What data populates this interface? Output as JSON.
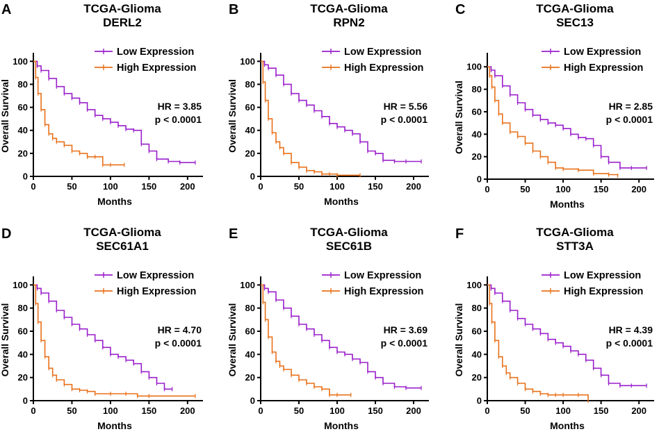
{
  "colors": {
    "low": "#9A1FCB",
    "high": "#E8711A",
    "axis": "#000000"
  },
  "chart_data": [
    {
      "letter": "A",
      "type": "line",
      "title": "TCGA-Glioma",
      "subtitle": "DERL2",
      "xlabel": "Months",
      "ylabel": "Overall Survival",
      "xlim": [
        0,
        220
      ],
      "ylim": [
        0,
        105
      ],
      "xticks": [
        "0",
        "50",
        "100",
        "150",
        "200"
      ],
      "yticks": [
        "0",
        "20",
        "40",
        "60",
        "80",
        "100"
      ],
      "hr_text": "HR = 3.85",
      "p_text": "p < 0.0001",
      "series": [
        {
          "name": "Low Expression",
          "x": [
            0,
            5,
            10,
            20,
            30,
            40,
            50,
            60,
            70,
            80,
            90,
            100,
            110,
            120,
            130,
            140,
            150,
            160,
            175,
            190,
            210
          ],
          "y": [
            100,
            96,
            92,
            85,
            78,
            72,
            68,
            64,
            58,
            53,
            50,
            47,
            44,
            41,
            40,
            28,
            22,
            15,
            13,
            12,
            12
          ]
        },
        {
          "name": "High Expression",
          "x": [
            0,
            3,
            6,
            10,
            15,
            20,
            25,
            30,
            40,
            50,
            60,
            70,
            80,
            90,
            100,
            118
          ],
          "y": [
            100,
            86,
            72,
            58,
            45,
            37,
            33,
            30,
            27,
            22,
            20,
            17,
            17,
            10,
            10,
            10
          ]
        }
      ]
    },
    {
      "letter": "B",
      "type": "line",
      "title": "TCGA-Glioma",
      "subtitle": "RPN2",
      "xlabel": "Months",
      "ylabel": "Overall Survival",
      "xlim": [
        0,
        220
      ],
      "ylim": [
        0,
        105
      ],
      "xticks": [
        "0",
        "50",
        "100",
        "150",
        "200"
      ],
      "yticks": [
        "0",
        "20",
        "40",
        "60",
        "80",
        "100"
      ],
      "hr_text": "HR = 5.56",
      "p_text": "p < 0.0001",
      "series": [
        {
          "name": "Low Expression",
          "x": [
            0,
            5,
            10,
            20,
            30,
            40,
            50,
            60,
            70,
            80,
            90,
            100,
            110,
            120,
            130,
            140,
            150,
            160,
            175,
            190,
            210
          ],
          "y": [
            100,
            97,
            94,
            88,
            80,
            72,
            66,
            62,
            57,
            52,
            46,
            43,
            40,
            37,
            30,
            22,
            20,
            14,
            13,
            13,
            13
          ]
        },
        {
          "name": "High Expression",
          "x": [
            0,
            3,
            6,
            10,
            15,
            20,
            25,
            30,
            40,
            50,
            60,
            70,
            80,
            90,
            100,
            130
          ],
          "y": [
            100,
            82,
            66,
            50,
            38,
            30,
            25,
            20,
            12,
            8,
            5,
            4,
            2,
            2,
            1,
            1
          ]
        }
      ]
    },
    {
      "letter": "C",
      "type": "line",
      "title": "TCGA-Glioma",
      "subtitle": "SEC13",
      "xlabel": "Months",
      "ylabel": "Overall Survival",
      "xlim": [
        0,
        220
      ],
      "ylim": [
        0,
        110
      ],
      "xticks": [
        "0",
        "50",
        "100",
        "150",
        "200"
      ],
      "yticks": [
        "0",
        "20",
        "40",
        "60",
        "80",
        "100"
      ],
      "hr_text": "HR = 2.85",
      "p_text": "p < 0.0001",
      "series": [
        {
          "name": "Low Expression",
          "x": [
            0,
            5,
            10,
            20,
            30,
            40,
            50,
            60,
            70,
            80,
            90,
            100,
            110,
            120,
            130,
            140,
            150,
            160,
            175,
            190,
            210
          ],
          "y": [
            100,
            97,
            92,
            83,
            75,
            68,
            62,
            57,
            53,
            50,
            48,
            45,
            40,
            37,
            36,
            30,
            20,
            15,
            10,
            10,
            10
          ]
        },
        {
          "name": "High Expression",
          "x": [
            0,
            3,
            6,
            10,
            15,
            20,
            30,
            40,
            50,
            60,
            70,
            80,
            90,
            100,
            120,
            140,
            160,
            172
          ],
          "y": [
            100,
            92,
            82,
            70,
            58,
            50,
            42,
            38,
            32,
            25,
            20,
            15,
            10,
            9,
            8,
            5,
            4,
            3
          ]
        }
      ]
    },
    {
      "letter": "D",
      "type": "line",
      "title": "TCGA-Glioma",
      "subtitle": "SEC61A1",
      "xlabel": "Months",
      "ylabel": "Overall Survival",
      "xlim": [
        0,
        220
      ],
      "ylim": [
        0,
        105
      ],
      "xticks": [
        "0",
        "50",
        "100",
        "150",
        "200"
      ],
      "yticks": [
        "0",
        "20",
        "40",
        "60",
        "80",
        "100"
      ],
      "hr_text": "HR = 4.70",
      "p_text": "p < 0.0001",
      "series": [
        {
          "name": "Low Expression",
          "x": [
            0,
            5,
            10,
            20,
            30,
            40,
            50,
            60,
            70,
            80,
            90,
            100,
            110,
            120,
            130,
            140,
            150,
            160,
            170,
            180
          ],
          "y": [
            100,
            97,
            93,
            86,
            78,
            72,
            66,
            62,
            57,
            52,
            46,
            40,
            38,
            35,
            32,
            25,
            20,
            15,
            10,
            10
          ]
        },
        {
          "name": "High Expression",
          "x": [
            0,
            3,
            6,
            10,
            15,
            20,
            25,
            30,
            40,
            50,
            60,
            70,
            80,
            100,
            120,
            135,
            150,
            210
          ],
          "y": [
            100,
            84,
            68,
            52,
            38,
            28,
            22,
            18,
            14,
            10,
            9,
            8,
            6,
            6,
            6,
            4,
            4,
            4
          ]
        }
      ]
    },
    {
      "letter": "E",
      "type": "line",
      "title": "TCGA-Glioma",
      "subtitle": "SEC61B",
      "xlabel": "Months",
      "ylabel": "Overall Survival",
      "xlim": [
        0,
        220
      ],
      "ylim": [
        0,
        105
      ],
      "xticks": [
        "0",
        "50",
        "100",
        "150",
        "200"
      ],
      "yticks": [
        "0",
        "20",
        "40",
        "60",
        "80",
        "100"
      ],
      "hr_text": "HR = 3.69",
      "p_text": "p < 0.0001",
      "series": [
        {
          "name": "Low Expression",
          "x": [
            0,
            5,
            10,
            20,
            30,
            40,
            50,
            60,
            70,
            80,
            90,
            100,
            110,
            120,
            130,
            140,
            150,
            160,
            175,
            190,
            210
          ],
          "y": [
            100,
            97,
            94,
            87,
            80,
            73,
            66,
            62,
            57,
            52,
            46,
            42,
            40,
            36,
            33,
            25,
            20,
            15,
            12,
            11,
            11
          ]
        },
        {
          "name": "High Expression",
          "x": [
            0,
            3,
            6,
            10,
            15,
            20,
            25,
            30,
            40,
            50,
            60,
            70,
            80,
            90,
            100,
            118
          ],
          "y": [
            100,
            85,
            70,
            55,
            42,
            34,
            30,
            27,
            22,
            18,
            15,
            12,
            10,
            5,
            5,
            5
          ]
        }
      ]
    },
    {
      "letter": "F",
      "type": "line",
      "title": "TCGA-Glioma",
      "subtitle": "STT3A",
      "xlabel": "Months",
      "ylabel": "Overall Survival",
      "xlim": [
        0,
        220
      ],
      "ylim": [
        0,
        105
      ],
      "xticks": [
        "0",
        "50",
        "100",
        "150",
        "200"
      ],
      "yticks": [
        "0",
        "20",
        "40",
        "60",
        "80",
        "100"
      ],
      "hr_text": "HR = 4.39",
      "p_text": "p < 0.0001",
      "series": [
        {
          "name": "Low Expression",
          "x": [
            0,
            5,
            10,
            20,
            30,
            40,
            50,
            60,
            70,
            80,
            90,
            100,
            110,
            120,
            130,
            140,
            150,
            160,
            175,
            190,
            210
          ],
          "y": [
            100,
            97,
            93,
            86,
            78,
            71,
            66,
            62,
            58,
            53,
            50,
            47,
            43,
            40,
            35,
            28,
            22,
            15,
            13,
            13,
            13
          ]
        },
        {
          "name": "High Expression",
          "x": [
            0,
            3,
            6,
            10,
            15,
            20,
            25,
            30,
            40,
            50,
            60,
            70,
            80,
            90,
            100,
            120,
            133
          ],
          "y": [
            100,
            84,
            68,
            52,
            38,
            30,
            24,
            20,
            15,
            10,
            8,
            6,
            5,
            5,
            5,
            5,
            0
          ]
        }
      ]
    }
  ]
}
